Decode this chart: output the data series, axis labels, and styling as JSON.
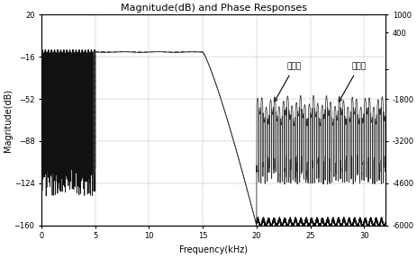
{
  "title": "Magnitude(dB) and Phase Responses",
  "xlabel": "Frequency(kHz)",
  "ylabel_left": "Magritude(dB)",
  "xlim": [
    0,
    32
  ],
  "ylim_left": [
    -160,
    20
  ],
  "ylim_right": [
    -6000,
    1000
  ],
  "xticks": [
    0,
    5,
    10,
    15,
    20,
    25,
    30
  ],
  "yticks_left": [
    20,
    -16,
    -52,
    -88,
    -124,
    -160
  ],
  "yticks_right": [
    1000,
    400,
    -800,
    -1800,
    -3200,
    -4600,
    -6000
  ],
  "ytick_right_labels": [
    "1000",
    "400",
    "",
    "-1800",
    "-3200",
    "-4600",
    "-6000"
  ],
  "annotation1": "量化前",
  "annotation2": "量化后",
  "bg_color": "#ffffff"
}
